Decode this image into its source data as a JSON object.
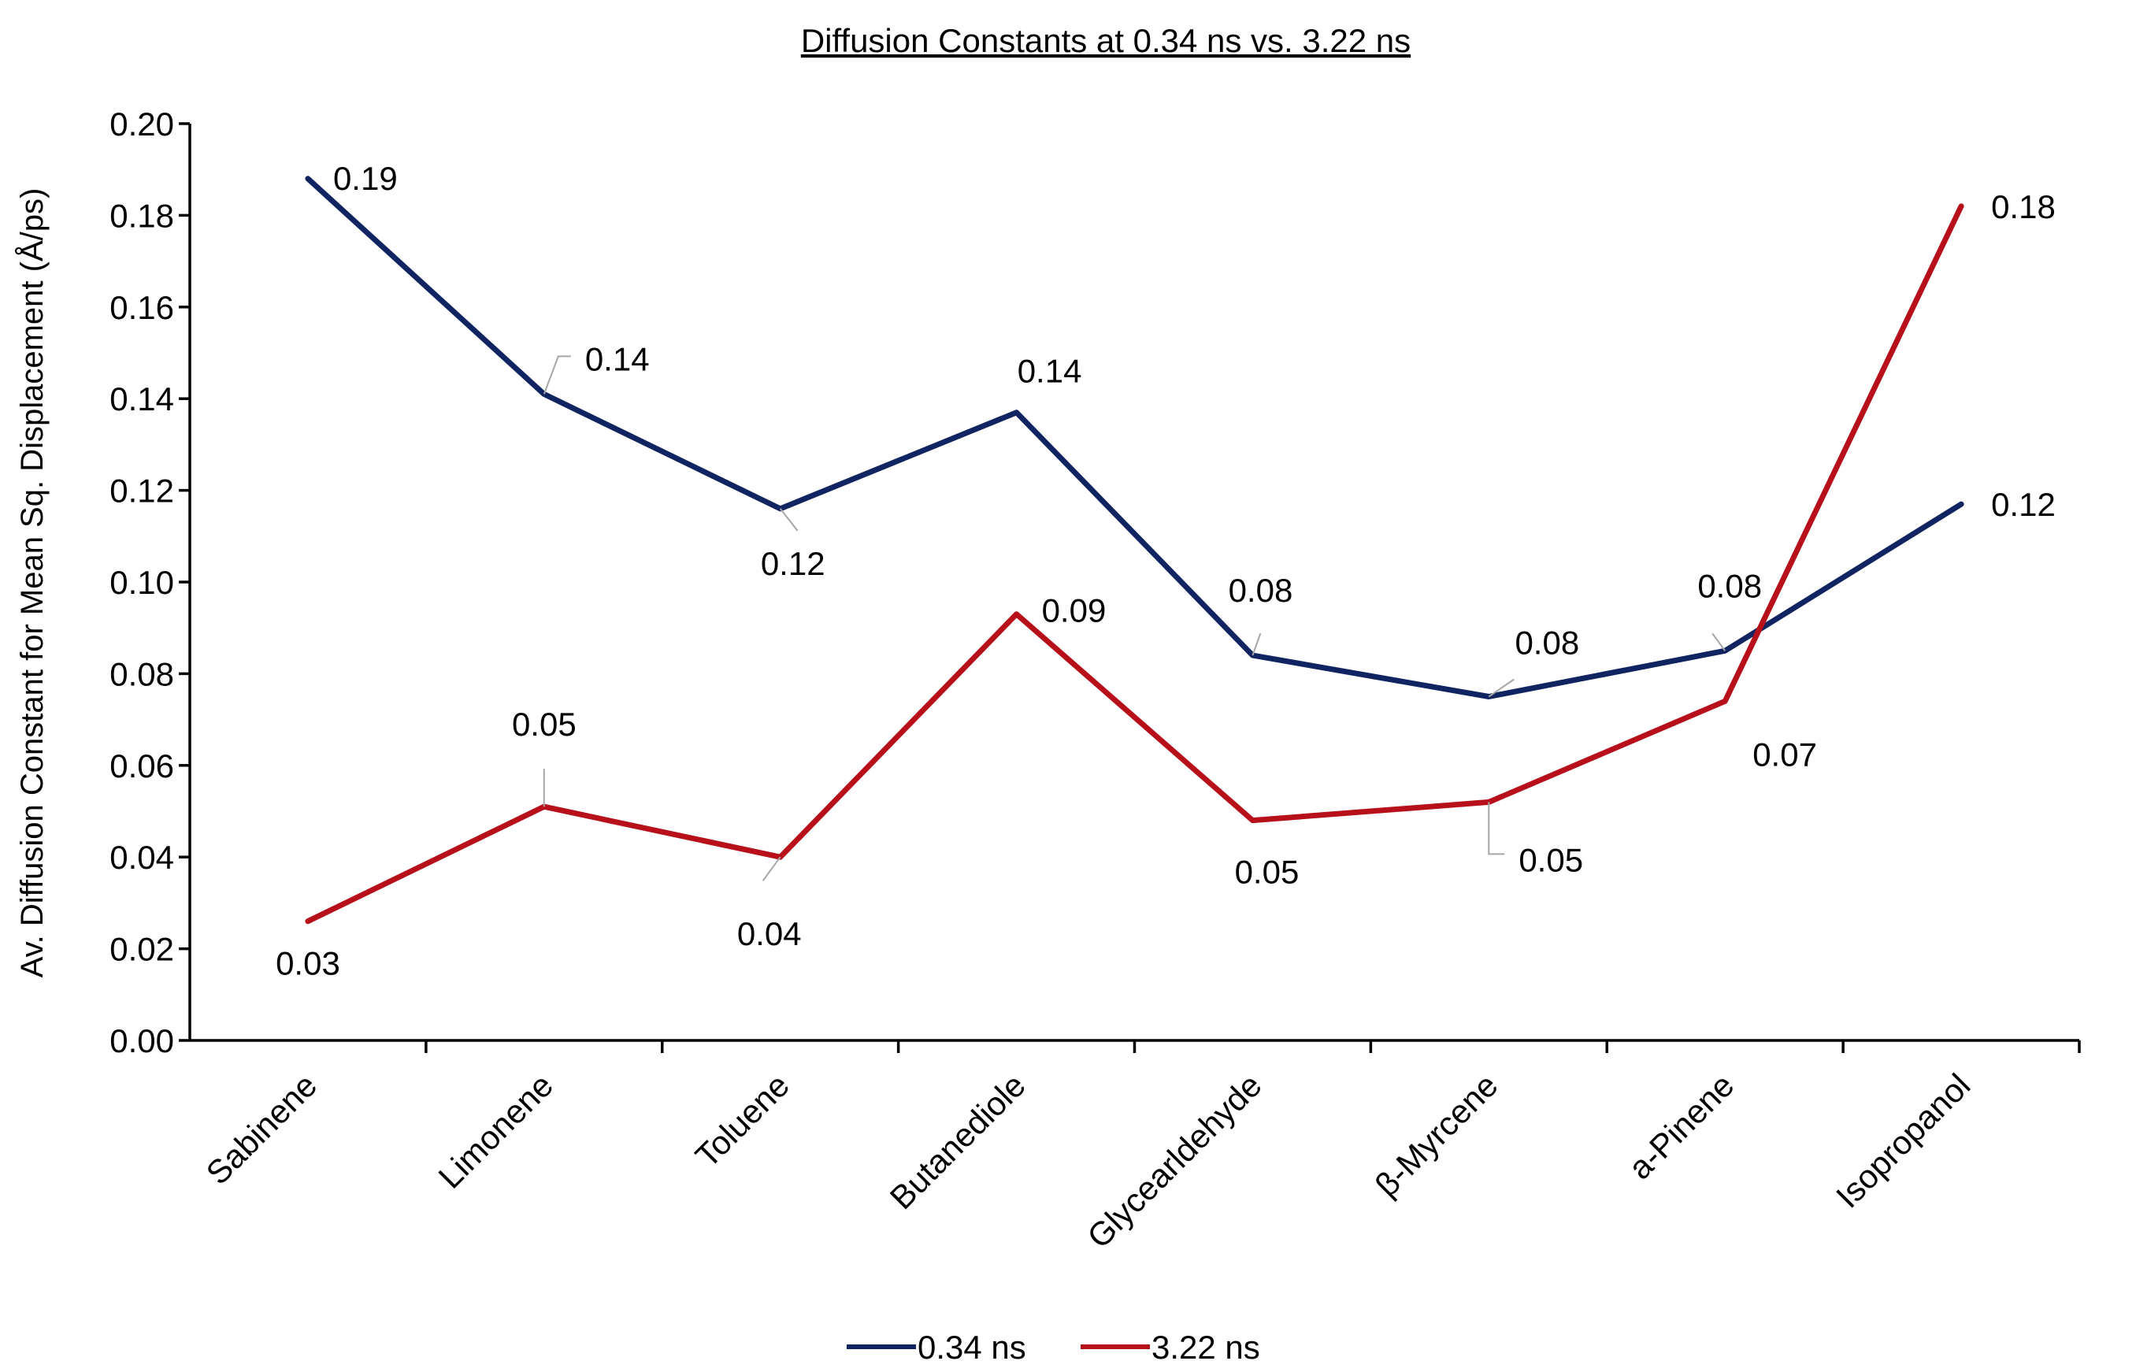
{
  "chart_data": {
    "type": "line",
    "title": "Diffusion Constants at 0.34 ns vs. 3.22 ns",
    "xlabel": "",
    "ylabel": "Av. Diffusion Constant for Mean Sq. Displacement (Å/ps)",
    "ylim": [
      0,
      0.2
    ],
    "yticks": [
      "0.00",
      "0.02",
      "0.04",
      "0.06",
      "0.08",
      "0.10",
      "0.12",
      "0.14",
      "0.16",
      "0.18",
      "0.20"
    ],
    "categories": [
      "Sabinene",
      "Limonene",
      "Toluene",
      "Butanediole",
      "Glycearldehyde",
      "β-Myrcene",
      "a-Pinene",
      "Isopropanol"
    ],
    "series": [
      {
        "name": "0.34 ns",
        "color": "#0f2461",
        "values": [
          0.188,
          0.141,
          0.116,
          0.137,
          0.084,
          0.075,
          0.085,
          0.117
        ],
        "labels": [
          "0.19",
          "0.14",
          "0.12",
          "0.14",
          "0.08",
          "0.08",
          "0.08",
          "0.12"
        ]
      },
      {
        "name": "3.22 ns",
        "color": "#b8101a",
        "values": [
          0.026,
          0.051,
          0.04,
          0.093,
          0.048,
          0.052,
          0.074,
          0.182
        ],
        "labels": [
          "0.03",
          "0.05",
          "0.04",
          "0.09",
          "0.05",
          "0.05",
          "0.07",
          "0.18"
        ]
      }
    ],
    "grid": false,
    "legend": "bottom-center"
  }
}
